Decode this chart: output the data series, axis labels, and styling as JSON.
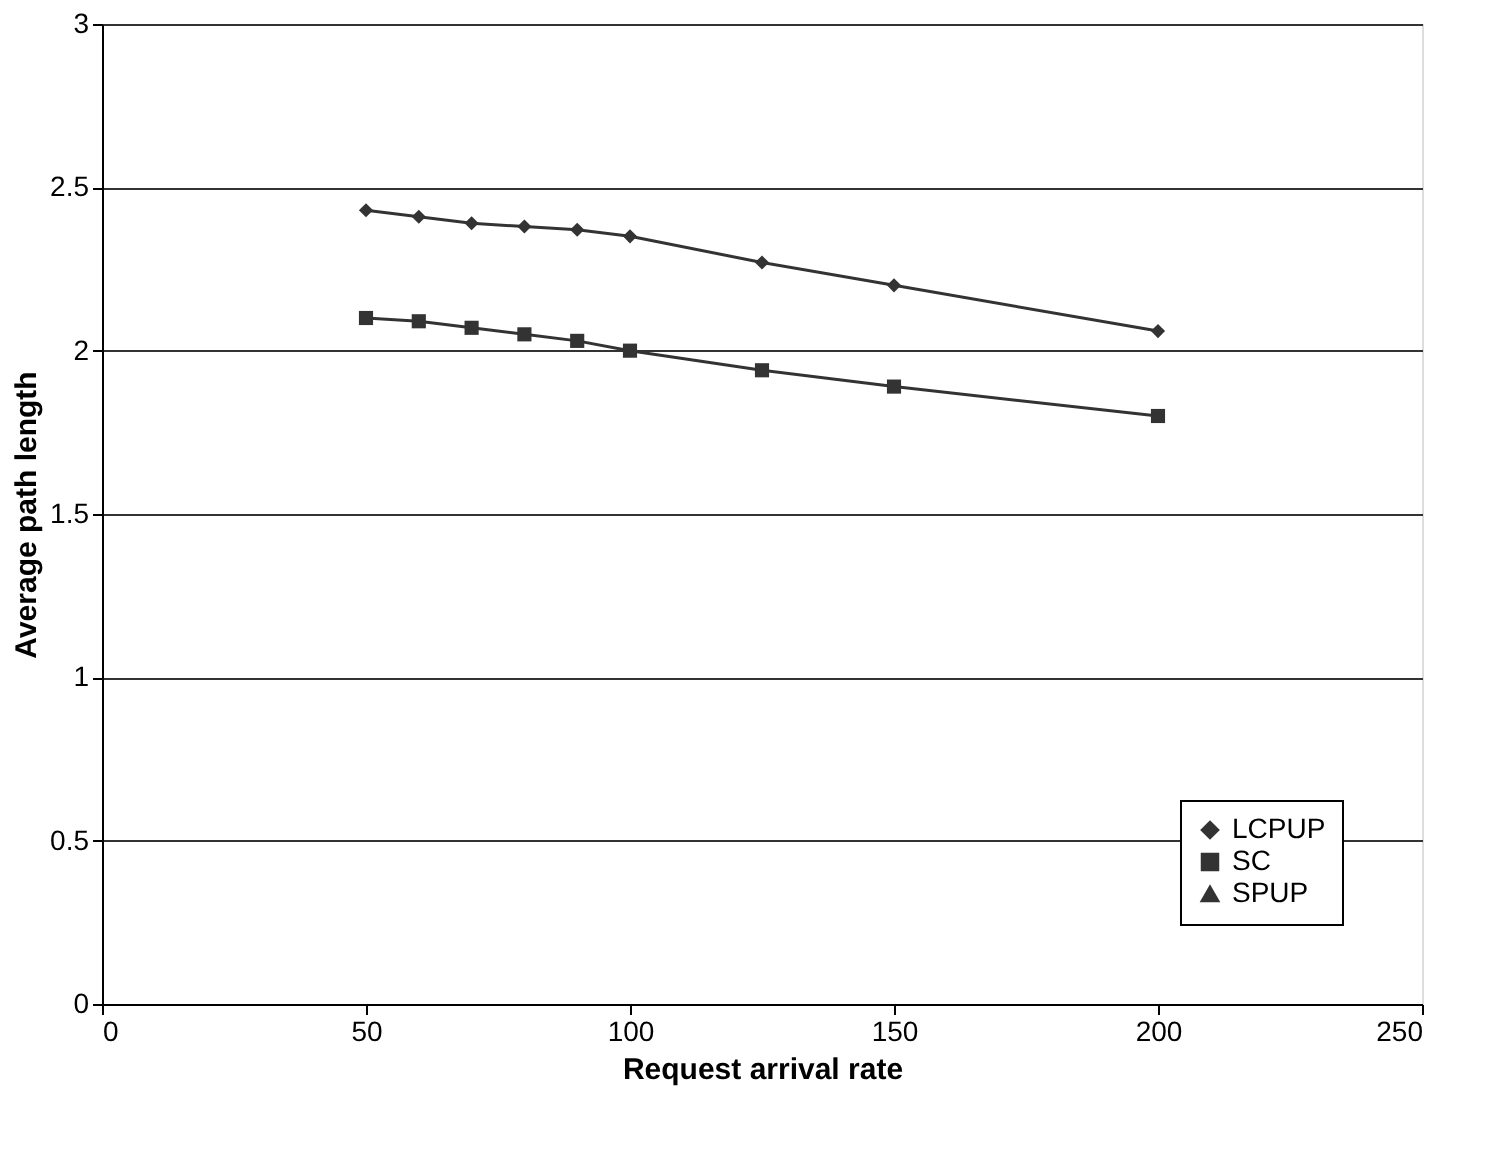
{
  "chart_data": {
    "type": "line",
    "xlabel": "Request arrival rate",
    "ylabel": "Average path length",
    "x": [
      50,
      60,
      70,
      80,
      90,
      100,
      125,
      150,
      200
    ],
    "series": [
      {
        "name": "LCPUP",
        "color": "#333333",
        "marker": "diamond",
        "values": [
          2.43,
          2.41,
          2.39,
          2.38,
          2.37,
          2.35,
          2.27,
          2.2,
          2.06
        ]
      },
      {
        "name": "SC",
        "color": "#333333",
        "marker": "square",
        "values": [
          2.1,
          2.09,
          2.07,
          2.05,
          2.03,
          2.0,
          1.94,
          1.89,
          1.8
        ]
      },
      {
        "name": "SPUP",
        "color": "#333333",
        "marker": "triangle",
        "values": [
          null,
          null,
          null,
          null,
          null,
          null,
          null,
          null,
          null
        ]
      }
    ],
    "xlim": [
      0,
      250
    ],
    "xticks": [
      0,
      50,
      100,
      150,
      200,
      250
    ],
    "ylim": [
      0,
      3
    ],
    "yticks": [
      0,
      0.5,
      1,
      1.5,
      2,
      2.5,
      3
    ],
    "grid": "y",
    "legend": "bottom right",
    "line_style": "solid"
  }
}
